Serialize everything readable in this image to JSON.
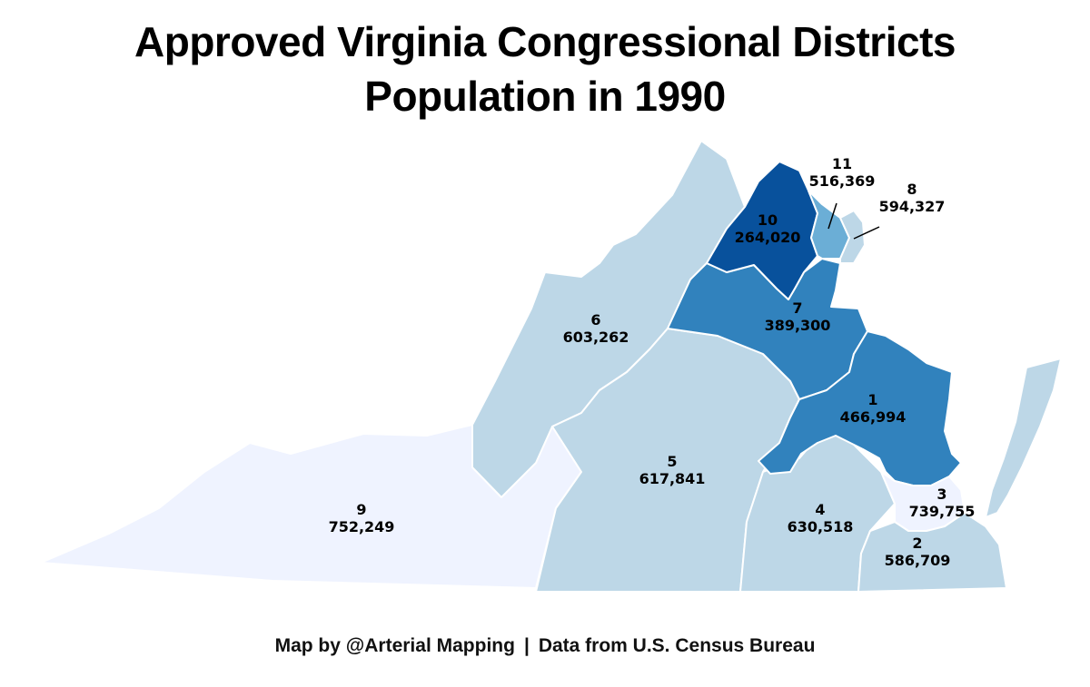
{
  "title": {
    "line1": "Approved Virginia Congressional Districts",
    "line2": "Population in 1990"
  },
  "colors": {
    "pop_lt_300k": "#08519c",
    "pop_300k_500k": "#3182bd",
    "pop_500k_550k": "#6baed6",
    "pop_550k_700k": "#bdd7e7",
    "pop_gt_700k": "#eff3ff",
    "border": "#ffffff"
  },
  "districts": [
    {
      "number": "1",
      "population": "466,994"
    },
    {
      "number": "2",
      "population": "586,709"
    },
    {
      "number": "3",
      "population": "739,755"
    },
    {
      "number": "4",
      "population": "630,518"
    },
    {
      "number": "5",
      "population": "617,841"
    },
    {
      "number": "6",
      "population": "603,262"
    },
    {
      "number": "7",
      "population": "389,300"
    },
    {
      "number": "8",
      "population": "594,327"
    },
    {
      "number": "9",
      "population": "752,249"
    },
    {
      "number": "10",
      "population": "264,020"
    },
    {
      "number": "11",
      "population": "516,369"
    }
  ],
  "footer": {
    "credit": "Map by @Arterial Mapping",
    "separator": "|",
    "source": "Data from U.S. Census Bureau"
  }
}
